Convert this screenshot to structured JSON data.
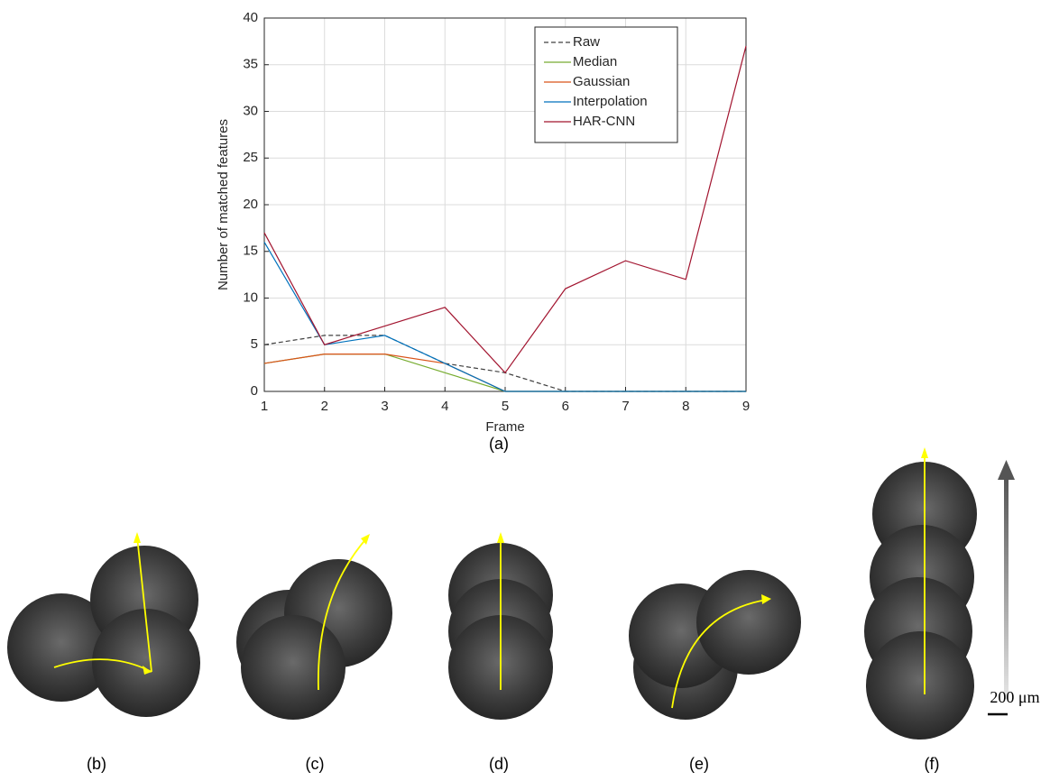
{
  "chart_data": {
    "type": "line",
    "xlabel": "Frame",
    "ylabel": "Number of matched features",
    "x": [
      1,
      2,
      3,
      4,
      5,
      6,
      7,
      8,
      9
    ],
    "series": [
      {
        "name": "Raw",
        "color": "#404040",
        "style": "dashed",
        "values": [
          5,
          6,
          6,
          3,
          2,
          0,
          0,
          0,
          0
        ]
      },
      {
        "name": "Median",
        "color": "#77ac30",
        "style": "solid",
        "values": [
          3,
          4,
          4,
          2,
          0,
          0,
          0,
          0,
          0
        ]
      },
      {
        "name": "Gaussian",
        "color": "#d95319",
        "style": "solid",
        "values": [
          3,
          4,
          4,
          3,
          0,
          0,
          0,
          0,
          0
        ]
      },
      {
        "name": "Interpolation",
        "color": "#0072bd",
        "style": "solid",
        "values": [
          16,
          5,
          6,
          3,
          0,
          0,
          0,
          0,
          0
        ]
      },
      {
        "name": "HAR-CNN",
        "color": "#a2142f",
        "style": "solid",
        "values": [
          17,
          5,
          7,
          9,
          2,
          11,
          14,
          12,
          37
        ]
      }
    ],
    "xlim": [
      1,
      9
    ],
    "xticks": [
      1,
      2,
      3,
      4,
      5,
      6,
      7,
      8,
      9
    ],
    "ylim": [
      0,
      40
    ],
    "yticks": [
      0,
      5,
      10,
      15,
      20,
      25,
      30,
      35,
      40
    ],
    "grid": true,
    "legend": "upper-right"
  },
  "caption": "(a)",
  "panel_labels": [
    "(b)",
    "(c)",
    "(d)",
    "(e)",
    "(f)"
  ],
  "scale_bar": "200 μm"
}
